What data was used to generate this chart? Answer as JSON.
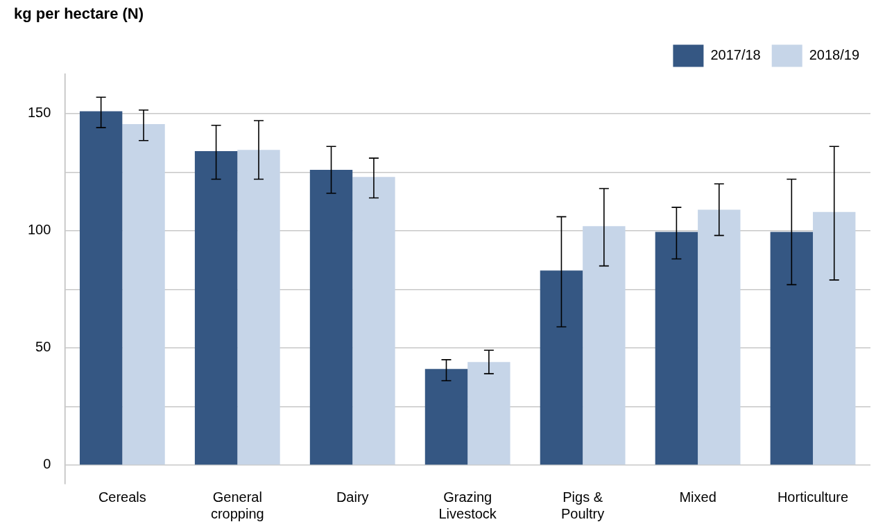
{
  "chart_data": {
    "type": "bar",
    "ylabel": "kg per hectare (N)",
    "categories": [
      "Cereals",
      "General cropping",
      "Dairy",
      "Grazing Livestock",
      "Pigs & Poultry",
      "Mixed",
      "Horticulture"
    ],
    "series": [
      {
        "name": "2017/18",
        "color": "#355783",
        "values": [
          151,
          134,
          126,
          41,
          83,
          99.5,
          99.5
        ],
        "errors": [
          [
            144,
            157
          ],
          [
            122,
            145
          ],
          [
            116,
            136
          ],
          [
            36,
            45
          ],
          [
            59,
            106
          ],
          [
            88,
            110
          ],
          [
            77,
            122
          ]
        ]
      },
      {
        "name": "2018/19",
        "color": "#c6d5e8",
        "values": [
          145.5,
          134.5,
          123,
          44,
          102,
          109,
          108
        ],
        "errors": [
          [
            138.5,
            151.5
          ],
          [
            122,
            147
          ],
          [
            114,
            131
          ],
          [
            39,
            49
          ],
          [
            85,
            118
          ],
          [
            98,
            120
          ],
          [
            79,
            136
          ]
        ]
      }
    ],
    "ylim": [
      -8,
      167
    ],
    "yticks": [
      0,
      {
        "value": 25,
        "label": null
      },
      50,
      {
        "value": 75,
        "label": null
      },
      100,
      {
        "value": 125,
        "label": null
      },
      150
    ],
    "grid": "y",
    "legend": "top right"
  }
}
